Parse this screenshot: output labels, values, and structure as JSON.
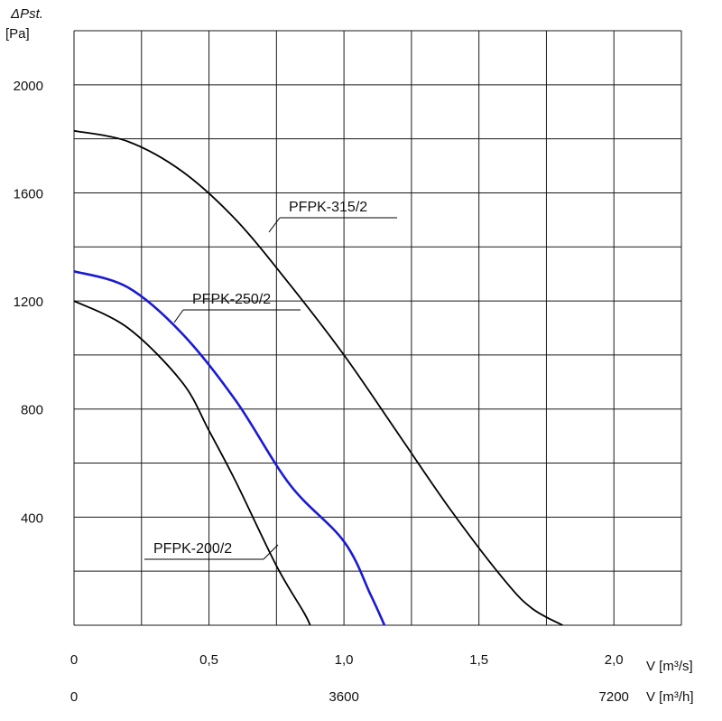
{
  "chart_data": {
    "type": "line",
    "ylabel_symbol": "ΔPst.",
    "ylabel_unit": "[Pa]",
    "xlabel_primary": "V [m³/s]",
    "xlabel_secondary": "V [m³/h]",
    "xlim": [
      0,
      2.25
    ],
    "ylim": [
      0,
      2200
    ],
    "x_ticks": [
      0,
      0.25,
      0.5,
      0.75,
      1.0,
      1.25,
      1.5,
      1.75,
      2.0,
      2.25
    ],
    "y_ticks": [
      0,
      200,
      400,
      600,
      800,
      1000,
      1200,
      1400,
      1600,
      1800,
      2000,
      2200
    ],
    "x_tick_labels": [
      {
        "value": 0,
        "label": "0"
      },
      {
        "value": 0.5,
        "label": "0,5"
      },
      {
        "value": 1.0,
        "label": "1,0"
      },
      {
        "value": 1.5,
        "label": "1,5"
      },
      {
        "value": 2.0,
        "label": "2,0"
      }
    ],
    "x2_tick_labels": [
      {
        "value": 0,
        "label": "0"
      },
      {
        "value": 1.0,
        "label": "3600"
      },
      {
        "value": 2.0,
        "label": "7200"
      }
    ],
    "y_tick_labels": [
      {
        "value": 400,
        "label": "400"
      },
      {
        "value": 800,
        "label": "800"
      },
      {
        "value": 1200,
        "label": "1200"
      },
      {
        "value": 1600,
        "label": "1600"
      },
      {
        "value": 2000,
        "label": "2000"
      }
    ],
    "grid": true,
    "series": [
      {
        "name": "PFPK-315/2",
        "color": "#000000",
        "x": [
          0,
          0.2,
          0.4,
          0.6,
          0.8,
          1.0,
          1.2,
          1.4,
          1.6,
          1.7,
          1.81
        ],
        "y": [
          1830,
          1790,
          1680,
          1500,
          1260,
          1000,
          710,
          420,
          160,
          60,
          0
        ]
      },
      {
        "name": "PFPK-250/2",
        "color": "#1a1ad4",
        "x": [
          0,
          0.2,
          0.4,
          0.6,
          0.8,
          1.0,
          1.1,
          1.15
        ],
        "y": [
          1310,
          1250,
          1080,
          830,
          520,
          310,
          110,
          0
        ]
      },
      {
        "name": "PFPK-200/2",
        "color": "#000000",
        "x": [
          0,
          0.2,
          0.4,
          0.5,
          0.6,
          0.75,
          0.85,
          0.875
        ],
        "y": [
          1200,
          1100,
          900,
          720,
          530,
          220,
          50,
          0
        ]
      }
    ]
  }
}
